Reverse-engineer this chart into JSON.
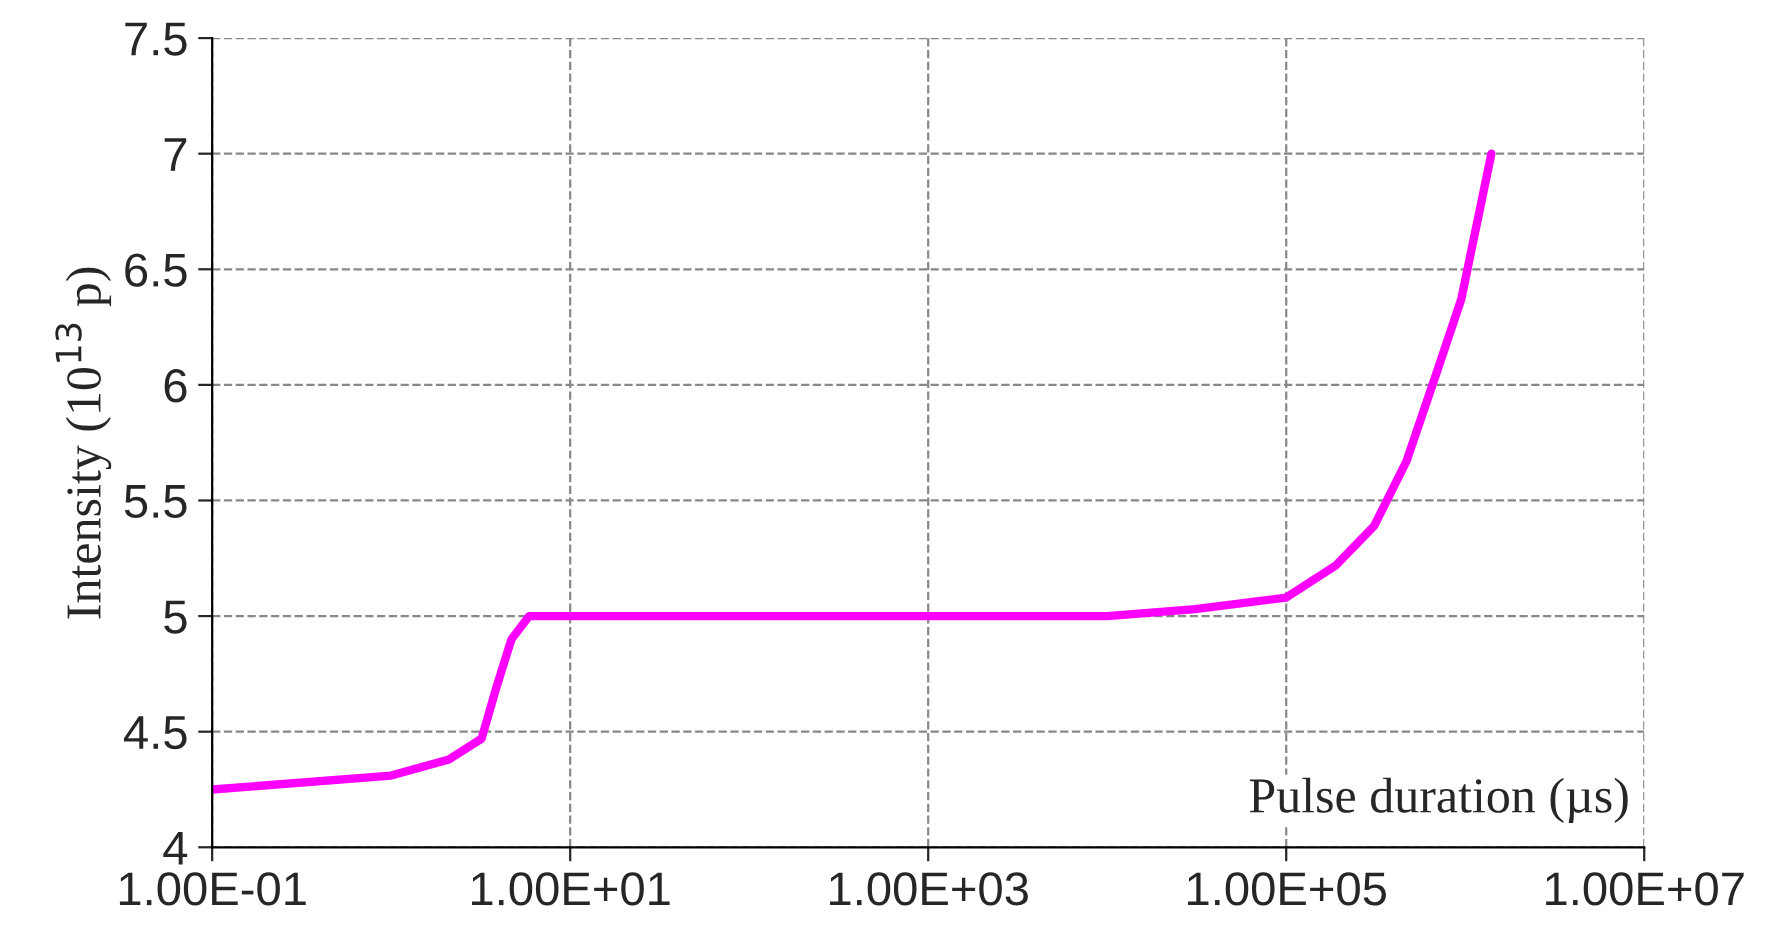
{
  "chart_data": {
    "type": "line",
    "xlabel": "Pulse duration (µs)",
    "ylabel": "Intensity (10$^{13}$ p)",
    "x": [
      0.1,
      1,
      2.1,
      3.2,
      3.9,
      4.7,
      5.9,
      10,
      100,
      1000,
      10000,
      31000,
      100000,
      190000,
      310000,
      470000,
      690000,
      950000,
      1400000
    ],
    "series": [
      {
        "color": "#ff00ff",
        "values": [
          4.25,
          4.31,
          4.38,
          4.47,
          4.7,
          4.9,
          5.0,
          5.0,
          5.0,
          5.0,
          5.0,
          5.03,
          5.08,
          5.22,
          5.39,
          5.67,
          6.05,
          6.37,
          7.0
        ]
      }
    ],
    "log": "x",
    "xlim": [
      0.1,
      10000000
    ],
    "ylim": [
      4,
      7.5
    ],
    "xticks": [
      {
        "value": 0.1,
        "label": "1.00E-01"
      },
      {
        "value": 10,
        "label": "1.00E+01"
      },
      {
        "value": 1000,
        "label": "1.00E+03"
      },
      {
        "value": 100000,
        "label": "1.00E+05"
      },
      {
        "value": 10000000,
        "label": "1.00E+07"
      }
    ],
    "yticks": [
      4,
      4.5,
      5,
      5.5,
      6,
      6.5,
      7,
      7.5
    ],
    "grid": true,
    "line_style": "solid",
    "marker": "none",
    "legend": false
  }
}
